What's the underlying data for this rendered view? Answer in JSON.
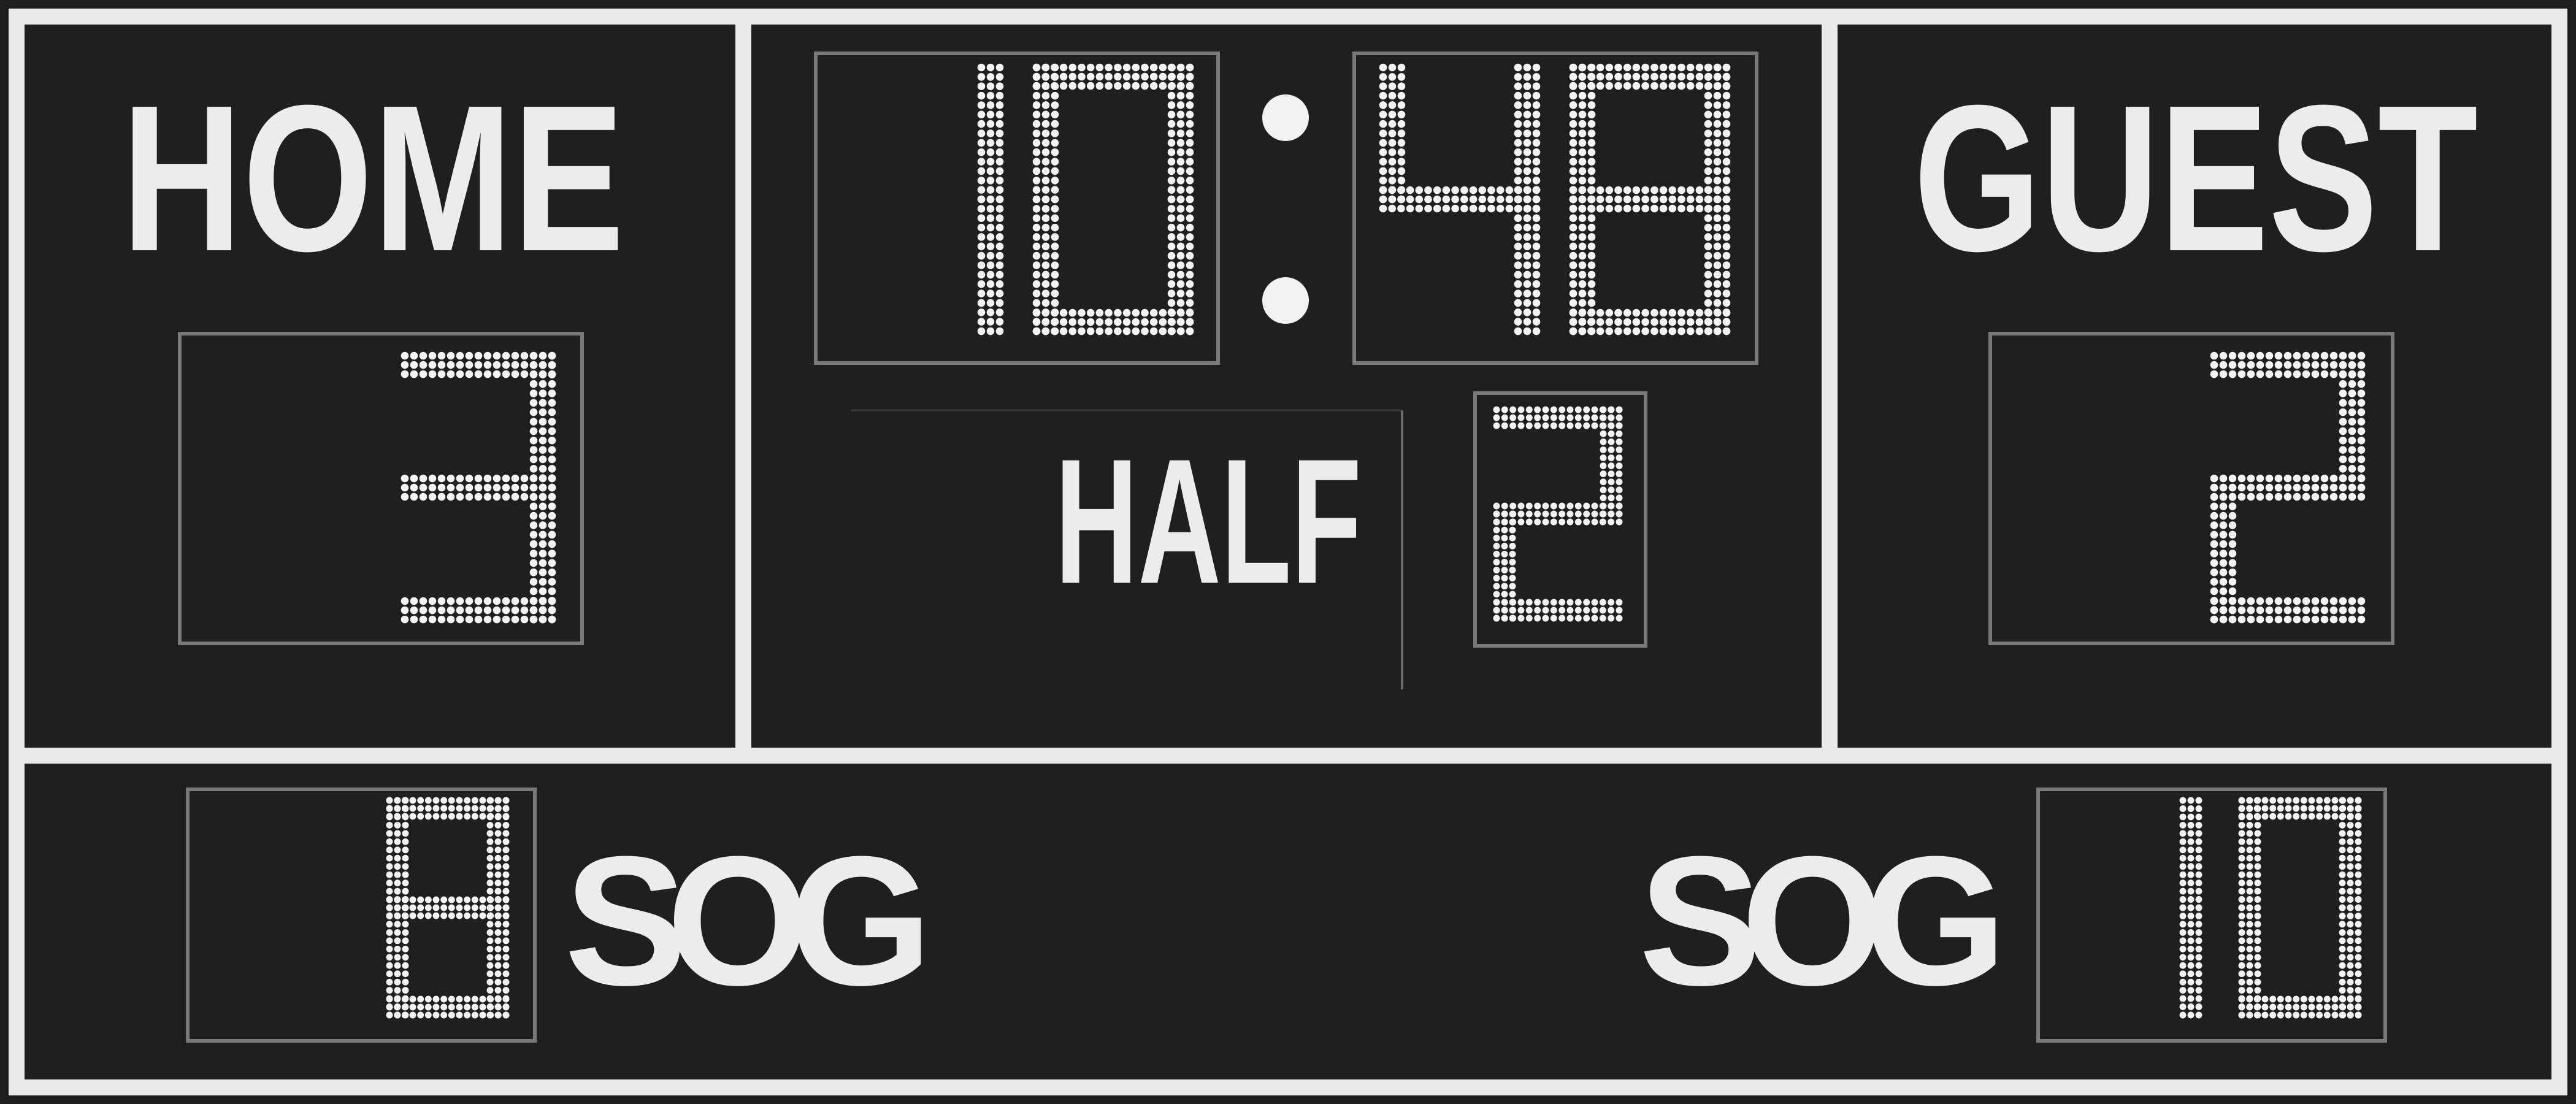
{
  "home": {
    "label": "HOME",
    "score": "3",
    "sog_label": "SOG",
    "sog": "8"
  },
  "guest": {
    "label": "GUEST",
    "score": "2",
    "sog_label": "SOG",
    "sog": "10"
  },
  "clock": {
    "minutes": "10",
    "separator": ":",
    "seconds": "48"
  },
  "period": {
    "label": "HALF",
    "value": "2"
  },
  "colors": {
    "panel": "#1f1f1f",
    "frame": "#e9e9e9",
    "box": "#7a7a7a",
    "text": "#ececec",
    "led": "#f2f2f2"
  }
}
